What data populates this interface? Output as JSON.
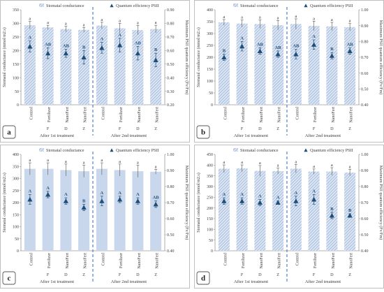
{
  "common": {
    "legend": {
      "bar": "Stomatal conductance",
      "tri": "Quantum efficiency PSII"
    },
    "categories": [
      "Control",
      "Fertilizer",
      "NanoFert",
      "NanoFert"
    ],
    "cat_sub": [
      "",
      "F",
      "D",
      "Z"
    ],
    "treatments": [
      "After 1st treatment",
      "After 2nd treatment"
    ],
    "y_left_label": "Stomatal conductance (mmol/m2.s)",
    "y_right_label": "Maximum PSII quantum efficiency (Fv/Fm)",
    "colors": {
      "bar": "#9fb6d8",
      "bar_panel_c": "#c9d7ec",
      "tri": "#1f4e79",
      "divider": "#4472c4",
      "text": "#404040"
    },
    "bar_fill_style": {
      "a": "hatched",
      "b": "hatched",
      "c": "light-solid",
      "d": "hatched"
    }
  },
  "chart_data": [
    {
      "panel": "a",
      "type": "bar",
      "categories": [
        "Control",
        "Fertilizer F",
        "NanoFert D",
        "NanoFert Z",
        "Control",
        "Fertilizer F",
        "NanoFert D",
        "NanoFert Z"
      ],
      "y_left": {
        "min": 0,
        "max": 350,
        "ticks": [
          "0",
          "50",
          "100",
          "150",
          "200",
          "250",
          "300",
          "350"
        ]
      },
      "y_right": {
        "min": 0.2,
        "max": 0.9,
        "ticks": [
          "0.20",
          "0.30",
          "0.40",
          "0.50",
          "0.60",
          "0.70",
          "0.80",
          "0.90"
        ]
      },
      "series": [
        {
          "name": "Stomatal conductance",
          "values": [
            293,
            285,
            279,
            276,
            292,
            282,
            275,
            279
          ],
          "errors": [
            14,
            8,
            10,
            9,
            12,
            18,
            17,
            14
          ],
          "letters": [
            "a",
            "a",
            "a",
            "a",
            "a",
            "a",
            "a",
            "a"
          ]
        },
        {
          "name": "Quantum efficiency PSII",
          "values": [
            0.63,
            0.58,
            0.58,
            0.55,
            0.62,
            0.64,
            0.58,
            0.53
          ],
          "errors": [
            0.04,
            0.04,
            0.03,
            0.05,
            0.04,
            0.05,
            0.05,
            0.05
          ],
          "letters": [
            "A",
            "AB",
            "AB",
            "B",
            "A",
            "A",
            "AB",
            "B"
          ]
        }
      ]
    },
    {
      "panel": "b",
      "type": "bar",
      "categories": [
        "Control",
        "Fertilizer F",
        "NanoFert D",
        "NanoFert Z",
        "Control",
        "Fertilizer F",
        "NanoFert D",
        "NanoFert Z"
      ],
      "y_left": {
        "min": 0,
        "max": 400,
        "ticks": [
          "0",
          "50",
          "100",
          "150",
          "200",
          "250",
          "300",
          "350",
          "400"
        ]
      },
      "y_right": {
        "min": 0.4,
        "max": 1.0,
        "ticks": [
          "0.40",
          "0.50",
          "0.60",
          "0.70",
          "0.80",
          "0.90",
          "1.00"
        ]
      },
      "series": [
        {
          "name": "Stomatal conductance",
          "values": [
            347,
            342,
            340,
            335,
            340,
            332,
            330,
            327
          ],
          "errors": [
            12,
            15,
            18,
            20,
            22,
            20,
            17,
            15
          ],
          "letters": [
            "a",
            "a",
            "a",
            "a",
            "a",
            "a",
            "a",
            "a"
          ]
        },
        {
          "name": "Quantum efficiency PSII",
          "values": [
            0.7,
            0.77,
            0.74,
            0.72,
            0.72,
            0.78,
            0.71,
            0.74
          ],
          "errors": [
            0.02,
            0.03,
            0.02,
            0.02,
            0.03,
            0.03,
            0.02,
            0.02
          ],
          "letters": [
            "B",
            "A",
            "AB",
            "AB",
            "AB",
            "A",
            "B",
            "AB"
          ]
        }
      ]
    },
    {
      "panel": "c",
      "type": "bar",
      "categories": [
        "Control",
        "Fertilizer F",
        "NanoFert D",
        "NanoFert Z",
        "Control",
        "Fertilizer F",
        "NanoFert D",
        "NanoFert Z"
      ],
      "y_left": {
        "min": 0,
        "max": 400,
        "ticks": [
          "0",
          "50",
          "100",
          "150",
          "200",
          "250",
          "300",
          "350",
          "400"
        ]
      },
      "y_right": {
        "min": 0.4,
        "max": 1.0,
        "ticks": [
          "0.40",
          "0.50",
          "0.60",
          "0.70",
          "0.80",
          "0.90",
          "1.00"
        ]
      },
      "series": [
        {
          "name": "Stomatal conductance",
          "values": [
            340,
            340,
            335,
            330,
            340,
            335,
            330,
            328
          ],
          "errors": [
            25,
            25,
            25,
            25,
            25,
            25,
            25,
            10
          ],
          "letters": [
            "a",
            "a",
            "a",
            "a",
            "a",
            "a",
            "a",
            "a"
          ]
        },
        {
          "name": "Quantum efficiency PSII",
          "values": [
            0.72,
            0.75,
            0.71,
            0.67,
            0.71,
            0.72,
            0.71,
            0.69
          ],
          "errors": [
            0.03,
            0.02,
            0.02,
            0.02,
            0.03,
            0.02,
            0.02,
            0.02
          ],
          "letters": [
            "A",
            "A",
            "A",
            "B",
            "A",
            "A",
            "A",
            "AB"
          ]
        }
      ]
    },
    {
      "panel": "d",
      "type": "bar",
      "categories": [
        "Control",
        "Fertilizer F",
        "NanoFert D",
        "NanoFert Z",
        "Control",
        "Fertilizer F",
        "NanoFert D",
        "NanoFert Z"
      ],
      "y_left": {
        "min": 0,
        "max": 450,
        "ticks": [
          "0",
          "50",
          "100",
          "150",
          "200",
          "250",
          "300",
          "350",
          "400",
          "450"
        ]
      },
      "y_right": {
        "min": 0.4,
        "max": 1.0,
        "ticks": [
          "0.40",
          "0.50",
          "0.60",
          "0.70",
          "0.80",
          "0.90",
          "1.00"
        ]
      },
      "series": [
        {
          "name": "Stomatal conductance",
          "values": [
            383,
            385,
            373,
            372,
            383,
            370,
            370,
            365
          ],
          "errors": [
            18,
            16,
            25,
            14,
            20,
            12,
            18,
            15
          ],
          "letters": [
            "a",
            "a",
            "a",
            "a",
            "a",
            "a",
            "a",
            "a"
          ]
        },
        {
          "name": "Quantum efficiency PSII",
          "values": [
            0.71,
            0.71,
            0.7,
            0.7,
            0.71,
            0.72,
            0.62,
            0.62
          ],
          "errors": [
            0.02,
            0.02,
            0.02,
            0.01,
            0.03,
            0.03,
            0.02,
            0.01
          ],
          "letters": [
            "A",
            "A",
            "A",
            "A",
            "A",
            "A",
            "B",
            "B"
          ]
        }
      ]
    }
  ]
}
